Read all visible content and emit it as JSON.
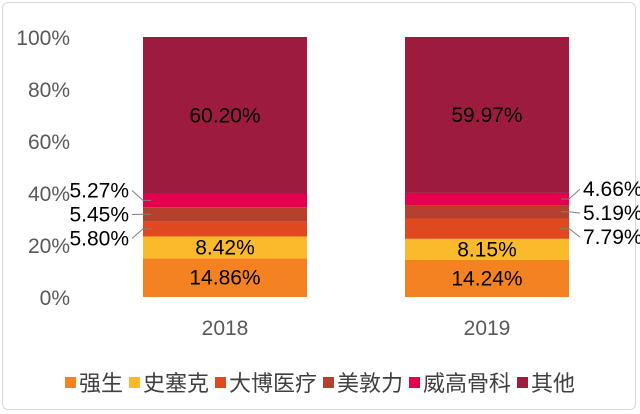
{
  "chart_data": {
    "type": "bar",
    "stacked": true,
    "percent_stacked": true,
    "categories": [
      "2018",
      "2019"
    ],
    "series": [
      {
        "name": "强生",
        "values": [
          14.86,
          14.24
        ],
        "color": "#F58220"
      },
      {
        "name": "史塞克",
        "values": [
          8.42,
          8.15
        ],
        "color": "#FBBA2B"
      },
      {
        "name": "大博医疗",
        "values": [
          5.8,
          7.79
        ],
        "color": "#E0491F"
      },
      {
        "name": "美敦力",
        "values": [
          5.45,
          5.19
        ],
        "color": "#B4402D"
      },
      {
        "name": "威高骨科",
        "values": [
          5.27,
          4.66
        ],
        "color": "#E4004E"
      },
      {
        "name": "其他",
        "values": [
          60.2,
          59.97
        ],
        "color": "#9D1C3E"
      }
    ],
    "data_labels": [
      [
        "14.86%",
        "8.42%",
        "5.80%",
        "5.45%",
        "5.27%",
        "60.20%"
      ],
      [
        "14.24%",
        "8.15%",
        "7.79%",
        "5.19%",
        "4.66%",
        "59.97%"
      ]
    ],
    "yticks": [
      "0%",
      "20%",
      "40%",
      "60%",
      "80%",
      "100%"
    ],
    "ylim": [
      0,
      100
    ],
    "grid": false,
    "legend_position": "bottom"
  }
}
